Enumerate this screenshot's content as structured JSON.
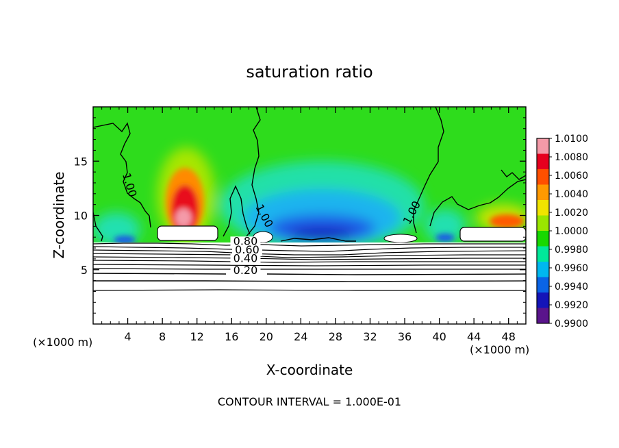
{
  "chart_data": {
    "type": "heatmap",
    "title": "saturation ratio",
    "xlabel": "X-coordinate",
    "ylabel": "Z-coordinate",
    "x_unit_left": "(×1000 m)",
    "x_unit_right": "(×1000 m)",
    "xlim": [
      0,
      50
    ],
    "ylim": [
      0,
      20
    ],
    "x_ticks": [
      "4",
      "8",
      "12",
      "16",
      "20",
      "24",
      "28",
      "32",
      "36",
      "40",
      "44",
      "48"
    ],
    "x_tick_values": [
      4,
      8,
      12,
      16,
      20,
      24,
      28,
      32,
      36,
      40,
      44,
      48
    ],
    "y_ticks": [
      "5",
      "10",
      "15"
    ],
    "y_tick_values": [
      5,
      10,
      15
    ],
    "colorbar": {
      "labels": [
        "1.0100",
        "1.0080",
        "1.0060",
        "1.0040",
        "1.0020",
        "1.0000",
        "0.9980",
        "0.9960",
        "0.9940",
        "0.9920",
        "0.9900"
      ],
      "colors": [
        "#f49aa8",
        "#e6001e",
        "#ff5000",
        "#ff9a00",
        "#f0e400",
        "#9ae600",
        "#18d800",
        "#00e89a",
        "#00b8f0",
        "#0a64e6",
        "#1414b8",
        "#5a148c"
      ]
    },
    "contour_labels": [
      {
        "text": "1.00",
        "x": 3.8,
        "z": 12.7
      },
      {
        "text": "1.00",
        "x": 19.4,
        "z": 9.8
      },
      {
        "text": "1.00",
        "x": 37.2,
        "z": 10.1
      },
      {
        "text": "0.80",
        "x": 17.6,
        "z": 7.3
      },
      {
        "text": "0.60",
        "x": 17.8,
        "z": 6.5
      },
      {
        "text": "0.40",
        "x": 17.6,
        "z": 5.7
      },
      {
        "text": "0.20",
        "x": 17.6,
        "z": 4.6
      }
    ],
    "contour_levels_below": [
      0.2,
      0.4,
      0.6,
      0.8,
      0.9
    ],
    "footer": "CONTOUR INTERVAL = 1.000E-01"
  }
}
